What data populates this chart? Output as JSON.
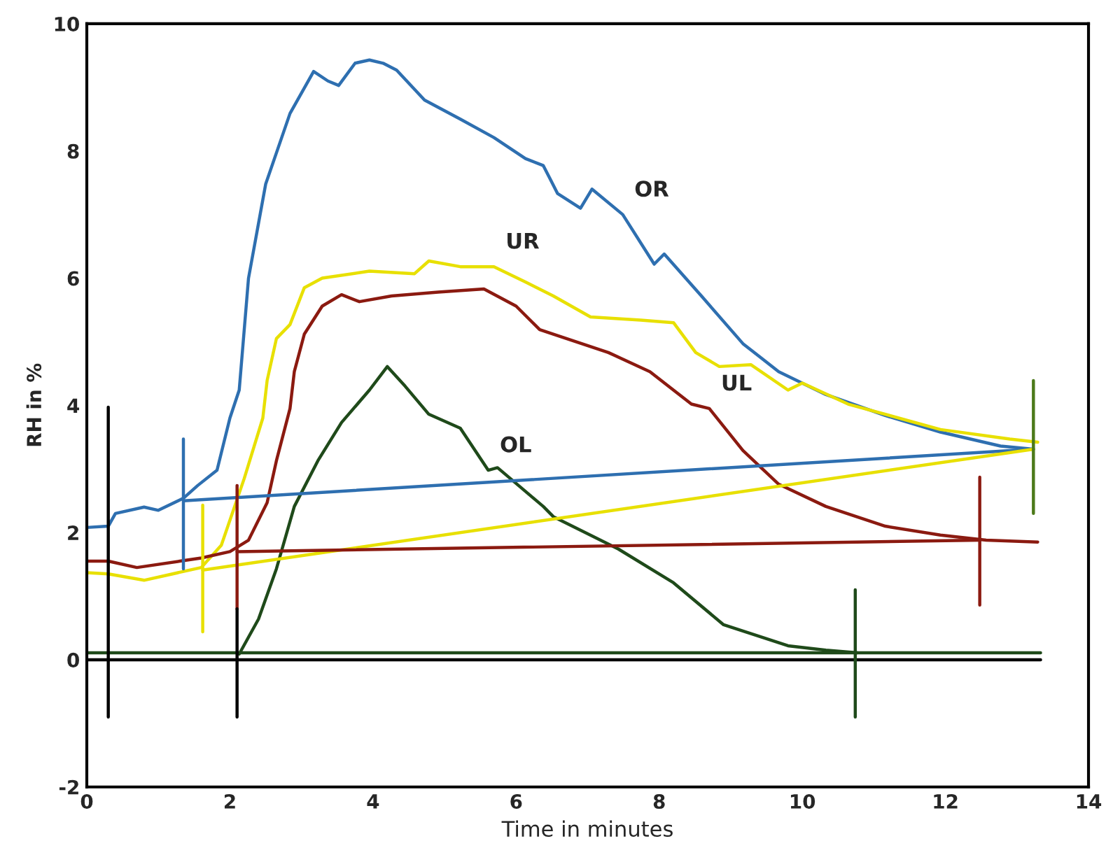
{
  "chart_data": {
    "type": "line",
    "xlabel": "Time in minutes",
    "ylabel": "RH in %",
    "xlim": [
      0,
      14
    ],
    "ylim": [
      -2,
      10
    ],
    "xticks": [
      0,
      2,
      4,
      6,
      8,
      10,
      12,
      14
    ],
    "yticks": [
      -2,
      0,
      2,
      4,
      6,
      8,
      10
    ],
    "grid": false,
    "legend": false,
    "marker": "none",
    "line_style": "solid",
    "series": [
      {
        "color": "#2e6fb0",
        "x": [
          0,
          0.3,
          0.4,
          0.8,
          1.0,
          1.35,
          1.55,
          1.82,
          2.0,
          2.13,
          2.26,
          2.5,
          2.84,
          3.17,
          3.37,
          3.52,
          3.75,
          3.95,
          4.14,
          4.33,
          4.72,
          5.22,
          5.69,
          6.13,
          6.38,
          6.58,
          6.9,
          7.06,
          7.49,
          7.93,
          8.07,
          8.59,
          9.17,
          9.67,
          10.33,
          11.16,
          11.93,
          12.77,
          13.23
        ],
        "values": [
          2.08,
          2.1,
          2.3,
          2.4,
          2.35,
          2.54,
          2.74,
          2.98,
          3.8,
          4.24,
          6.0,
          7.48,
          8.59,
          9.25,
          9.1,
          9.03,
          9.38,
          9.43,
          9.38,
          9.27,
          8.8,
          8.5,
          8.21,
          7.88,
          7.77,
          7.33,
          7.1,
          7.4,
          7.0,
          6.22,
          6.38,
          5.72,
          4.97,
          4.53,
          4.17,
          3.84,
          3.58,
          3.36,
          3.31
        ]
      },
      {
        "color": "#e8e000",
        "x": [
          0,
          0.3,
          0.8,
          1.2,
          1.6,
          1.88,
          2.2,
          2.46,
          2.52,
          2.65,
          2.84,
          3.04,
          3.29,
          3.95,
          4.58,
          4.78,
          5.22,
          5.69,
          6.13,
          6.52,
          7.04,
          7.74,
          8.2,
          8.51,
          8.84,
          9.28,
          9.8,
          10.0,
          10.64,
          11.93,
          12.9,
          13.29
        ],
        "values": [
          1.37,
          1.35,
          1.25,
          1.35,
          1.45,
          1.8,
          2.85,
          3.8,
          4.39,
          5.05,
          5.27,
          5.85,
          6.0,
          6.11,
          6.07,
          6.27,
          6.18,
          6.18,
          5.94,
          5.72,
          5.39,
          5.34,
          5.3,
          4.83,
          4.61,
          4.64,
          4.24,
          4.35,
          4.02,
          3.62,
          3.47,
          3.42
        ]
      },
      {
        "color": "#8b1a10",
        "x": [
          0,
          0.3,
          0.7,
          1.3,
          1.6,
          2.0,
          2.26,
          2.52,
          2.65,
          2.84,
          2.9,
          3.04,
          3.29,
          3.56,
          3.81,
          4.26,
          4.91,
          5.55,
          6.0,
          6.33,
          6.52,
          7.29,
          7.87,
          8.45,
          8.7,
          9.17,
          9.67,
          10.33,
          11.16,
          11.93,
          12.57,
          13.29
        ],
        "values": [
          1.55,
          1.55,
          1.45,
          1.55,
          1.6,
          1.7,
          1.88,
          2.47,
          3.13,
          3.95,
          4.53,
          5.12,
          5.56,
          5.74,
          5.63,
          5.72,
          5.78,
          5.83,
          5.56,
          5.19,
          5.12,
          4.83,
          4.53,
          4.02,
          3.95,
          3.29,
          2.76,
          2.41,
          2.1,
          1.96,
          1.88,
          1.85
        ]
      },
      {
        "color": "#1f4a1a",
        "x": [
          2.13,
          2.4,
          2.65,
          2.9,
          3.23,
          3.56,
          3.95,
          4.2,
          4.45,
          4.78,
          5.22,
          5.61,
          5.74,
          6.38,
          6.52,
          7.43,
          8.2,
          8.9,
          9.8,
          10.33,
          10.77
        ],
        "values": [
          0.09,
          0.64,
          1.43,
          2.41,
          3.13,
          3.73,
          4.24,
          4.61,
          4.3,
          3.86,
          3.64,
          2.98,
          3.02,
          2.41,
          2.25,
          1.74,
          1.21,
          0.55,
          0.22,
          0.15,
          0.11
        ]
      },
      {
        "color": "#2e6fb0",
        "x": [
          1.35,
          13.23
        ],
        "values": [
          2.5,
          3.31
        ]
      },
      {
        "color": "#e8e000",
        "x": [
          1.62,
          13.23
        ],
        "values": [
          1.41,
          3.31
        ]
      },
      {
        "color": "#8b1a10",
        "x": [
          2.1,
          12.48
        ],
        "values": [
          1.7,
          1.88
        ]
      },
      {
        "color": "#1f4a1a",
        "x": [
          0,
          13.33
        ],
        "values": [
          0.11,
          0.11
        ]
      },
      {
        "color": "#000000",
        "x": [
          0,
          13.33
        ],
        "values": [
          0,
          0
        ]
      },
      {
        "color": "#2e6fb0",
        "x": [
          1.35,
          1.35
        ],
        "values": [
          3.47,
          1.43
        ]
      },
      {
        "color": "#e8e000",
        "x": [
          1.62,
          1.62
        ],
        "values": [
          2.43,
          0.44
        ]
      },
      {
        "color": "#8b1a10",
        "x": [
          2.1,
          2.1
        ],
        "values": [
          2.74,
          0.8
        ]
      },
      {
        "color": "#000000",
        "x": [
          2.1,
          2.1
        ],
        "values": [
          0.8,
          -0.9
        ]
      },
      {
        "color": "#000000",
        "x": [
          0.3,
          0.3
        ],
        "values": [
          3.97,
          -0.9
        ]
      },
      {
        "color": "#8b1a10",
        "x": [
          12.48,
          12.48
        ],
        "values": [
          2.87,
          0.86
        ]
      },
      {
        "color": "#1f4a1a",
        "x": [
          10.74,
          10.74
        ],
        "values": [
          1.1,
          -0.9
        ]
      },
      {
        "color": "#4c7a1a",
        "x": [
          13.23,
          13.23
        ],
        "values": [
          4.39,
          2.3
        ]
      }
    ],
    "annotations": [
      {
        "text": "OR",
        "x": 7.49,
        "y": 7.0
      },
      {
        "text": "UR",
        "x": 5.69,
        "y": 6.18
      },
      {
        "text": "UL",
        "x": 8.7,
        "y": 3.95
      },
      {
        "text": "OL",
        "x": 5.61,
        "y": 2.98
      }
    ]
  }
}
